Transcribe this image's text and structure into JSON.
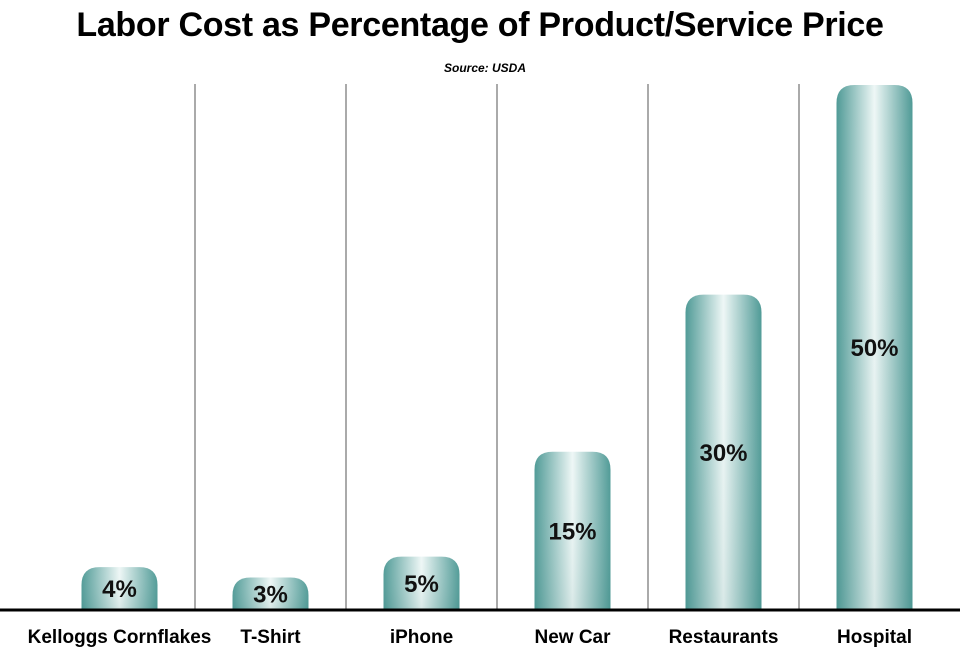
{
  "chart_data": {
    "type": "bar",
    "title": "Labor Cost as Percentage of Product/Service Price",
    "subtitle": "Source: USDA",
    "xlabel": "",
    "ylabel": "",
    "categories": [
      "Kelloggs Cornflakes",
      "T-Shirt",
      "iPhone",
      "New Car",
      "Restaurants",
      "Hospital"
    ],
    "values": [
      4,
      3,
      5,
      15,
      30,
      50
    ],
    "data_labels": [
      "4%",
      "3%",
      "5%",
      "15%",
      "30%",
      "50%"
    ],
    "ylim": [
      0,
      50
    ],
    "grid": "vertical separators between categories",
    "legend": "none",
    "colors": {
      "bar_edge": "#4f9a96",
      "bar_center": "#eef7f6",
      "baseline": "#000000",
      "separator": "#555555"
    }
  }
}
